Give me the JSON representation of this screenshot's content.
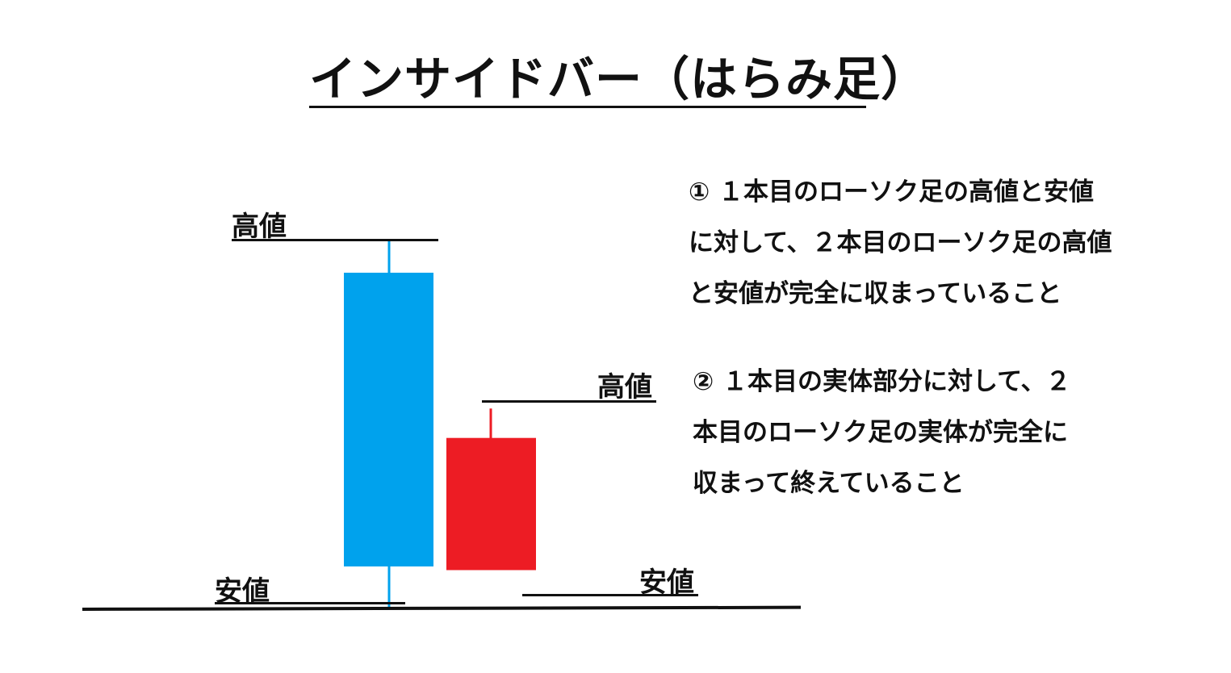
{
  "title": "インサイドバー（はらみ足）",
  "labels": {
    "first_high": "高値",
    "first_low": "安値",
    "second_high": "高値",
    "second_low": "安値"
  },
  "conditions": [
    {
      "lines": [
        "① １本目のローソク足の高値と安値",
        "に対して、２本目のローソク足の高値",
        "と安値が完全に収まっていること"
      ]
    },
    {
      "lines": [
        "② １本目の実体部分に対して、２",
        "本目のローソク足の実体が完全に",
        "収まって終えていること"
      ]
    }
  ],
  "candles": [
    {
      "name": "first-candle",
      "color": "#00a2ed",
      "high": 100,
      "open": 91,
      "close": 11,
      "low": 0
    },
    {
      "name": "second-candle",
      "color": "#ed1c24",
      "high": 54,
      "open": 46,
      "close": 10,
      "low": 10
    }
  ],
  "colors": {
    "first_candle": "#00a2ed",
    "second_candle": "#ed1c24"
  }
}
